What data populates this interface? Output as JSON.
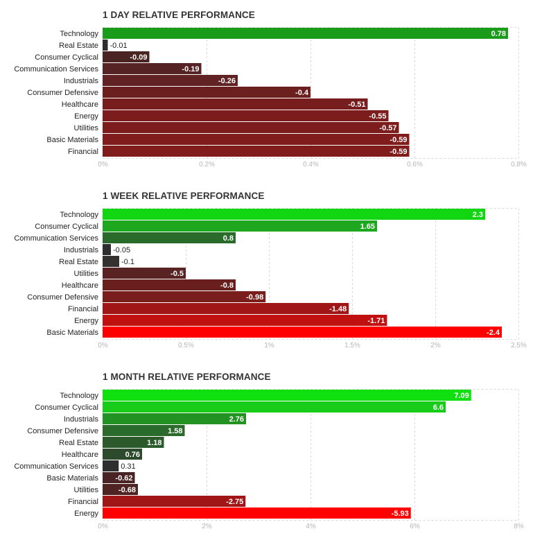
{
  "chart_data": [
    {
      "type": "bar",
      "orientation": "horizontal",
      "title": "1 DAY RELATIVE PERFORMANCE",
      "categories": [
        "Technology",
        "Real Estate",
        "Consumer Cyclical",
        "Communication Services",
        "Industrials",
        "Consumer Defensive",
        "Healthcare",
        "Energy",
        "Utilities",
        "Basic Materials",
        "Financial"
      ],
      "values": [
        0.78,
        -0.01,
        -0.09,
        -0.19,
        -0.26,
        -0.4,
        -0.51,
        -0.55,
        -0.57,
        -0.59,
        -0.59
      ],
      "value_labels": [
        "0.78",
        "-0.01",
        "-0.09",
        "-0.19",
        "-0.26",
        "-0.4",
        "-0.51",
        "-0.55",
        "-0.57",
        "-0.59",
        "-0.59"
      ],
      "xlim": [
        0,
        0.8
      ],
      "ticks": [
        0,
        0.2,
        0.4,
        0.6,
        0.8
      ],
      "tick_labels": [
        "0%",
        "0.2%",
        "0.4%",
        "0.6%",
        "0.8%"
      ],
      "bar_colors": [
        "#1a9b1a",
        "#2e2e2e",
        "#4a2323",
        "#552323",
        "#602222",
        "#6c1f1f",
        "#771d1d",
        "#7c1c1c",
        "#7d1c1c",
        "#801c1c",
        "#801c1c"
      ],
      "grid": true
    },
    {
      "type": "bar",
      "orientation": "horizontal",
      "title": "1 WEEK RELATIVE PERFORMANCE",
      "categories": [
        "Technology",
        "Consumer Cyclical",
        "Communication Services",
        "Industrials",
        "Real Estate",
        "Utilities",
        "Healthcare",
        "Consumer Defensive",
        "Financial",
        "Energy",
        "Basic Materials"
      ],
      "values": [
        2.3,
        1.65,
        0.8,
        -0.05,
        -0.1,
        -0.5,
        -0.8,
        -0.98,
        -1.48,
        -1.71,
        -2.4
      ],
      "value_labels": [
        "2.3",
        "1.65",
        "0.8",
        "-0.05",
        "-0.1",
        "-0.5",
        "-0.8",
        "-0.98",
        "-1.48",
        "-1.71",
        "-2.4"
      ],
      "xlim": [
        0,
        2.5
      ],
      "ticks": [
        0,
        0.5,
        1,
        1.5,
        2,
        2.5
      ],
      "tick_labels": [
        "0%",
        "0.5%",
        "1%",
        "1.5%",
        "2%",
        "2.5%"
      ],
      "bar_colors": [
        "#11d611",
        "#1fa71f",
        "#2a6a2a",
        "#2e2e2e",
        "#343131",
        "#5a2323",
        "#6a1f1f",
        "#7a1d1d",
        "#a01616",
        "#c01010",
        "#ff0000"
      ],
      "grid": true
    },
    {
      "type": "bar",
      "orientation": "horizontal",
      "title": "1 MONTH RELATIVE PERFORMANCE",
      "categories": [
        "Technology",
        "Consumer Cyclical",
        "Industrials",
        "Consumer Defensive",
        "Real Estate",
        "Healthcare",
        "Communication Services",
        "Basic Materials",
        "Utilities",
        "Financial",
        "Energy"
      ],
      "values": [
        7.09,
        6.6,
        2.76,
        1.58,
        1.18,
        0.76,
        0.31,
        -0.62,
        -0.68,
        -2.75,
        -5.93
      ],
      "value_labels": [
        "7.09",
        "6.6",
        "2.76",
        "1.58",
        "1.18",
        "0.76",
        "0.31",
        "-0.62",
        "-0.68",
        "-2.75",
        "-5.93"
      ],
      "xlim": [
        0,
        8
      ],
      "ticks": [
        0,
        2,
        4,
        6,
        8
      ],
      "tick_labels": [
        "0%",
        "2%",
        "4%",
        "6%",
        "8%"
      ],
      "bar_colors": [
        "#10e010",
        "#19cc19",
        "#229322",
        "#2a6a2a",
        "#2c5a2c",
        "#2d4a2d",
        "#2e2e2e",
        "#4a2424",
        "#502323",
        "#a01616",
        "#ff0000"
      ],
      "grid": true
    }
  ]
}
